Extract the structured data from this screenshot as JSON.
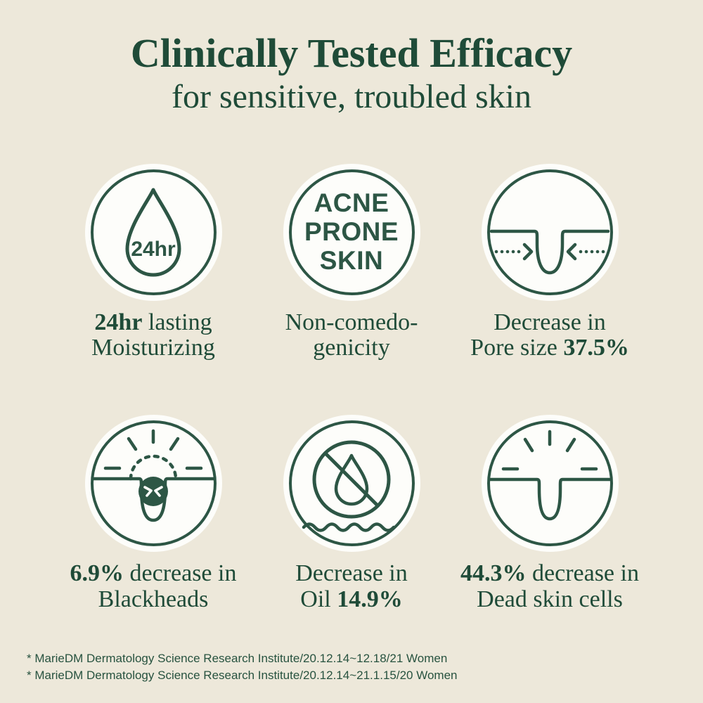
{
  "canvas": {
    "background": "#EDE8DA",
    "text_green": "#1F4B38",
    "icon_green": "#2D5645",
    "circle_fill": "#FDFDFA"
  },
  "header": {
    "title": "Clinically Tested Efficacy",
    "subtitle": "for sensitive, troubled skin"
  },
  "benefits": [
    {
      "icon": "water-drop-24hr-icon",
      "icon_label": "24hr",
      "caption": [
        [
          {
            "t": "24hr",
            "b": true
          },
          {
            "t": " lasting",
            "b": false
          }
        ],
        [
          {
            "t": "Moisturizing",
            "b": false
          }
        ]
      ]
    },
    {
      "icon": "acne-prone-skin-badge-icon",
      "icon_lines": [
        "ACNE",
        "PRONE",
        "SKIN"
      ],
      "caption": [
        [
          {
            "t": "Non-comedo-",
            "b": false
          }
        ],
        [
          {
            "t": "genicity",
            "b": false
          }
        ]
      ]
    },
    {
      "icon": "pore-shrink-arrows-icon",
      "caption": [
        [
          {
            "t": "Decrease in",
            "b": false
          }
        ],
        [
          {
            "t": "Pore size ",
            "b": false
          },
          {
            "t": "37.5%",
            "b": true
          }
        ]
      ]
    },
    {
      "icon": "blackhead-pore-icon",
      "caption": [
        [
          {
            "t": "6.9%",
            "b": true
          },
          {
            "t": " decrease in",
            "b": false
          }
        ],
        [
          {
            "t": "Blackheads",
            "b": false
          }
        ]
      ]
    },
    {
      "icon": "no-oil-drop-icon",
      "caption": [
        [
          {
            "t": "Decrease in",
            "b": false
          }
        ],
        [
          {
            "t": "Oil ",
            "b": false
          },
          {
            "t": "14.9%",
            "b": true
          }
        ]
      ]
    },
    {
      "icon": "dead-skin-pore-icon",
      "caption": [
        [
          {
            "t": "44.3%",
            "b": true
          },
          {
            "t": " decrease in",
            "b": false
          }
        ],
        [
          {
            "t": "Dead skin cells",
            "b": false
          }
        ]
      ]
    }
  ],
  "footnotes": [
    "* MarieDM Dermatology Science Research Institute/20.12.14~12.18/21 Women",
    "* MarieDM Dermatology Science Research Institute/20.12.14~21.1.15/20 Women"
  ]
}
